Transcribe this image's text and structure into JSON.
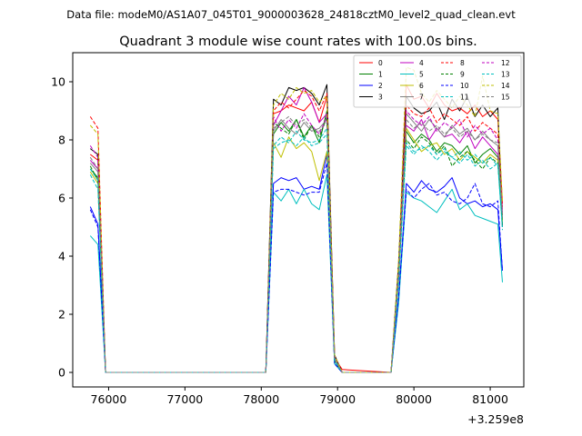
{
  "figure": {
    "suptitle": "Data file: modeM0/AS1A07_045T01_9000003628_24818cztM0_level2_quad_clean.evt"
  },
  "chart_data": {
    "type": "line",
    "title": "Quadrant 3 module wise count rates with 100.0s bins.",
    "xlabel": "",
    "ylabel": "",
    "x_offset_label": "+3.259e8",
    "xlim": [
      75530,
      81440
    ],
    "ylim": [
      -0.5,
      11.0
    ],
    "xticks": [
      76000,
      77000,
      78000,
      79000,
      80000,
      81000
    ],
    "xtick_labels": [
      "76000",
      "77000",
      "78000",
      "79000",
      "80000",
      "81000"
    ],
    "yticks": [
      0,
      2,
      4,
      6,
      8,
      10
    ],
    "ytick_labels": [
      "0",
      "2",
      "4",
      "6",
      "8",
      "10"
    ],
    "legend": {
      "placement": "top-right",
      "columns": 4
    },
    "grid": false,
    "segments": [
      {
        "x": [
          75760,
          75860,
          75960
        ],
        "n_bins_low": 0
      },
      {
        "x": [
          78060,
          78160,
          78260,
          78360,
          78460,
          78560,
          78660,
          78760,
          78860,
          78960,
          79060
        ],
        "n_bins_low": 1
      },
      {
        "x": [
          79700,
          79800,
          79900,
          80000,
          80100,
          80200,
          80300,
          80400,
          80500,
          80600,
          80700,
          80800,
          80900,
          81000,
          81100,
          81160
        ],
        "n_bins_low": 0
      }
    ],
    "zero_span": [
      75960,
      78060
    ],
    "zero_span2": [
      79060,
      79700
    ],
    "series": [
      {
        "name": "0",
        "color": "#ff0000",
        "dash": false,
        "pre": [
          7.5,
          7.3,
          0.0
        ],
        "mid": [
          0.0,
          8.9,
          9.0,
          9.2,
          9.1,
          9.0,
          9.3,
          8.6,
          9.5,
          0.5,
          0.1
        ],
        "post": [
          0.0,
          3.6,
          9.9,
          9.4,
          9.5,
          9.1,
          9.6,
          9.2,
          9.0,
          9.1,
          8.9,
          9.2,
          8.8,
          9.0,
          8.7,
          5.8
        ]
      },
      {
        "name": "1",
        "color": "#008000",
        "dash": false,
        "pre": [
          7.0,
          6.7,
          0.0
        ],
        "mid": [
          0.0,
          8.2,
          8.6,
          8.3,
          8.7,
          8.1,
          8.5,
          7.9,
          9.0,
          0.4,
          0.0
        ],
        "post": [
          0.0,
          3.3,
          8.3,
          7.9,
          8.2,
          8.0,
          7.6,
          7.9,
          7.8,
          7.5,
          7.8,
          7.2,
          7.5,
          7.7,
          7.4,
          5.4
        ]
      },
      {
        "name": "2",
        "color": "#0000ff",
        "dash": false,
        "pre": [
          5.7,
          5.1,
          0.0
        ],
        "mid": [
          0.0,
          6.5,
          6.7,
          6.6,
          6.7,
          6.3,
          6.4,
          6.3,
          7.5,
          0.3,
          0.0
        ],
        "post": [
          0.0,
          2.6,
          6.5,
          6.2,
          6.6,
          6.3,
          6.2,
          6.4,
          6.7,
          6.0,
          5.8,
          5.9,
          5.7,
          5.8,
          5.6,
          3.5
        ]
      },
      {
        "name": "3",
        "color": "#000000",
        "dash": false,
        "pre": [
          7.7,
          7.5,
          0.0
        ],
        "mid": [
          0.0,
          9.4,
          9.2,
          9.8,
          9.7,
          9.8,
          9.6,
          9.2,
          9.9,
          0.6,
          0.0
        ],
        "post": [
          0.0,
          3.8,
          9.5,
          9.1,
          8.9,
          9.0,
          9.3,
          8.7,
          9.4,
          9.0,
          9.5,
          8.8,
          9.2,
          8.8,
          9.1,
          5.0
        ]
      },
      {
        "name": "4",
        "color": "#bf00bf",
        "dash": false,
        "pre": [
          7.3,
          7.0,
          0.0
        ],
        "mid": [
          0.0,
          8.5,
          9.0,
          9.5,
          9.2,
          9.8,
          9.3,
          8.6,
          8.9,
          0.5,
          0.0
        ],
        "post": [
          0.0,
          3.5,
          8.5,
          8.3,
          8.7,
          8.0,
          8.4,
          8.1,
          8.2,
          7.9,
          8.3,
          7.7,
          8.1,
          7.8,
          7.5,
          5.6
        ]
      },
      {
        "name": "5",
        "color": "#00bfbf",
        "dash": false,
        "pre": [
          4.7,
          4.4,
          0.0
        ],
        "mid": [
          0.0,
          6.2,
          5.9,
          6.3,
          5.8,
          6.3,
          5.8,
          5.6,
          6.8,
          0.3,
          0.0
        ],
        "post": [
          0.0,
          2.4,
          6.2,
          6.0,
          5.9,
          5.7,
          5.5,
          5.9,
          6.3,
          5.6,
          5.8,
          5.4,
          5.3,
          5.2,
          5.1,
          3.1
        ]
      },
      {
        "name": "6",
        "color": "#bfbf00",
        "dash": false,
        "pre": [
          6.9,
          6.5,
          0.0
        ],
        "mid": [
          0.0,
          7.9,
          7.4,
          8.1,
          7.7,
          7.9,
          7.6,
          6.6,
          7.6,
          0.4,
          0.0
        ],
        "post": [
          0.0,
          3.2,
          8.4,
          8.0,
          7.6,
          7.8,
          7.9,
          7.5,
          7.7,
          7.3,
          7.6,
          7.4,
          7.2,
          7.5,
          7.3,
          5.2
        ]
      },
      {
        "name": "7",
        "color": "#808080",
        "dash": false,
        "pre": [
          7.2,
          6.9,
          0.0
        ],
        "mid": [
          0.0,
          8.3,
          8.7,
          8.4,
          8.2,
          8.6,
          8.3,
          8.4,
          8.7,
          0.5,
          0.0
        ],
        "post": [
          0.0,
          3.4,
          8.9,
          8.6,
          8.3,
          8.7,
          8.4,
          8.1,
          8.5,
          8.2,
          8.4,
          8.0,
          8.3,
          8.0,
          7.8,
          5.3
        ]
      },
      {
        "name": "8",
        "color": "#ff0000",
        "dash": true,
        "pre": [
          8.8,
          8.4,
          0.0
        ],
        "mid": [
          0.0,
          9.0,
          9.3,
          9.1,
          9.4,
          9.7,
          9.5,
          9.0,
          9.6,
          0.6,
          0.0
        ],
        "post": [
          0.0,
          3.7,
          9.2,
          8.9,
          8.8,
          9.1,
          8.6,
          8.9,
          8.7,
          8.5,
          8.8,
          8.3,
          8.6,
          8.4,
          8.2,
          5.7
        ]
      },
      {
        "name": "9",
        "color": "#008000",
        "dash": true,
        "pre": [
          7.1,
          6.6,
          0.0
        ],
        "mid": [
          0.0,
          8.6,
          8.4,
          8.2,
          8.7,
          8.0,
          8.5,
          8.1,
          8.8,
          0.4,
          0.0
        ],
        "post": [
          0.0,
          3.3,
          8.0,
          7.7,
          8.1,
          7.9,
          7.5,
          7.8,
          7.1,
          7.4,
          7.6,
          7.3,
          7.0,
          7.4,
          7.2,
          5.1
        ]
      },
      {
        "name": "10",
        "color": "#0000ff",
        "dash": true,
        "pre": [
          5.6,
          5.0,
          0.0
        ],
        "mid": [
          0.0,
          6.2,
          6.3,
          6.3,
          6.2,
          6.1,
          6.2,
          6.2,
          7.2,
          0.3,
          0.0
        ],
        "post": [
          0.0,
          2.6,
          6.3,
          6.0,
          6.3,
          6.5,
          6.1,
          6.2,
          5.9,
          5.8,
          6.0,
          6.5,
          5.8,
          5.7,
          5.9,
          3.5
        ]
      },
      {
        "name": "11",
        "color": "#00bfbf",
        "dash": true,
        "pre": [
          7.0,
          6.6,
          0.0
        ],
        "mid": [
          0.0,
          7.8,
          8.1,
          7.9,
          8.3,
          8.0,
          7.9,
          8.0,
          8.4,
          0.4,
          0.0
        ],
        "post": [
          0.0,
          3.2,
          7.9,
          7.6,
          7.7,
          7.8,
          7.5,
          7.7,
          7.4,
          7.6,
          7.3,
          7.5,
          7.2,
          7.4,
          7.1,
          5.0
        ]
      },
      {
        "name": "12",
        "color": "#bf00bf",
        "dash": true,
        "pre": [
          7.8,
          7.4,
          0.0
        ],
        "mid": [
          0.0,
          8.8,
          8.3,
          8.7,
          8.4,
          8.9,
          8.5,
          8.2,
          8.8,
          0.5,
          0.0
        ],
        "post": [
          0.0,
          3.5,
          9.0,
          8.7,
          8.5,
          8.8,
          8.3,
          8.6,
          8.4,
          8.7,
          8.1,
          8.5,
          8.2,
          8.4,
          8.0,
          5.5
        ]
      },
      {
        "name": "13",
        "color": "#00bfbf",
        "dash": true,
        "pre": [
          6.8,
          6.3,
          0.0
        ],
        "mid": [
          0.0,
          7.7,
          7.9,
          8.0,
          7.8,
          8.1,
          7.8,
          7.9,
          8.2,
          0.4,
          0.0
        ],
        "post": [
          0.0,
          3.1,
          7.8,
          7.5,
          7.8,
          7.6,
          7.3,
          7.6,
          7.4,
          7.2,
          7.5,
          7.1,
          7.3,
          7.0,
          7.2,
          4.9
        ]
      },
      {
        "name": "14",
        "color": "#bfbf00",
        "dash": true,
        "pre": [
          8.5,
          8.2,
          0.0
        ],
        "mid": [
          0.0,
          9.2,
          9.6,
          9.4,
          9.8,
          9.6,
          9.7,
          9.3,
          9.5,
          0.6,
          0.0
        ],
        "post": [
          0.0,
          3.9,
          10.5,
          10.4,
          9.6,
          9.3,
          9.7,
          9.4,
          9.1,
          9.5,
          9.2,
          8.8,
          10.2,
          9.0,
          8.9,
          5.9
        ]
      },
      {
        "name": "15",
        "color": "#808080",
        "dash": true,
        "pre": [
          7.4,
          7.0,
          0.0
        ],
        "mid": [
          0.0,
          8.4,
          8.6,
          8.8,
          8.5,
          8.7,
          8.4,
          8.3,
          8.6,
          0.5,
          0.0
        ],
        "post": [
          0.0,
          3.4,
          8.7,
          8.4,
          8.6,
          8.3,
          8.5,
          8.2,
          8.4,
          8.1,
          8.3,
          8.0,
          8.2,
          8.0,
          7.9,
          5.4
        ]
      }
    ]
  }
}
